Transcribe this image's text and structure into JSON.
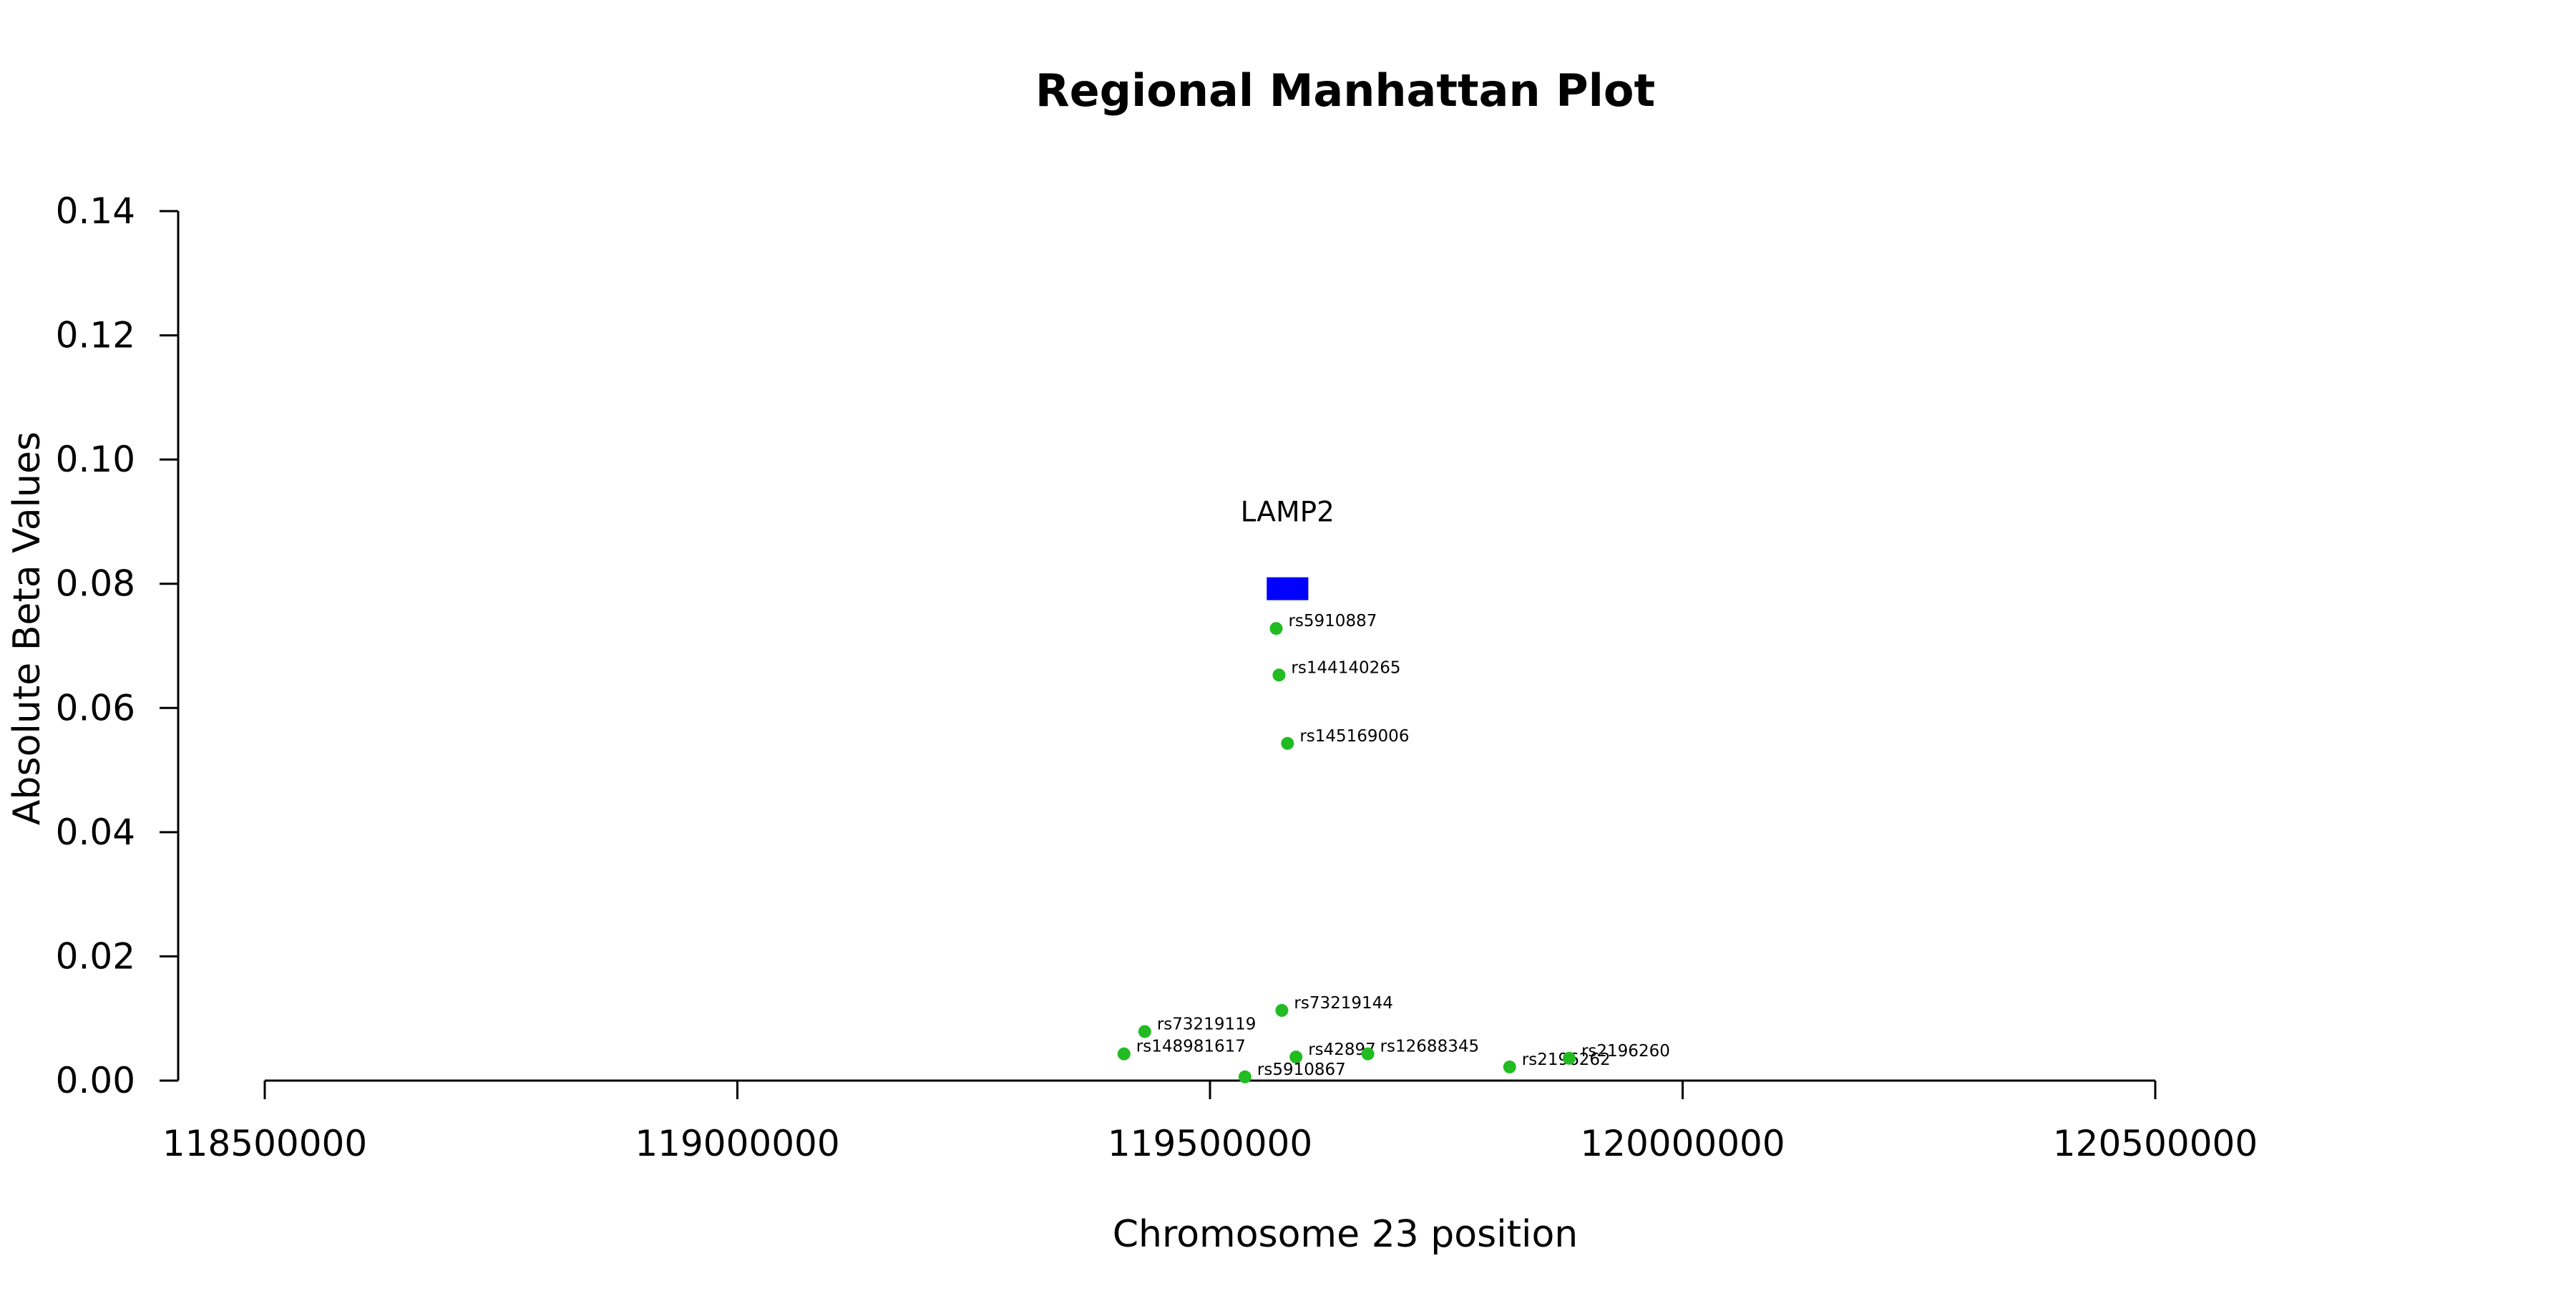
{
  "chart_data": {
    "type": "scatter",
    "title": "Regional Manhattan Plot",
    "xlabel": "Chromosome 23 position",
    "ylabel": "Absolute Beta Values",
    "xlim": [
      118500000,
      120500000
    ],
    "ylim": [
      0,
      0.14
    ],
    "xticks": [
      118500000,
      119000000,
      119500000,
      120000000,
      120500000
    ],
    "xtick_labels": [
      "118500000",
      "119000000",
      "119500000",
      "120000000",
      "120500000"
    ],
    "yticks": [
      0,
      0.02,
      0.04,
      0.06,
      0.08,
      0.1,
      0.12,
      0.14
    ],
    "ytick_labels": [
      "0.00",
      "0.02",
      "0.04",
      "0.06",
      "0.08",
      "0.10",
      "0.12",
      "0.14"
    ],
    "grid": false,
    "point_color": "#22bb22",
    "gene_color": "#0000ff",
    "points": [
      {
        "label": "rs5910887",
        "x": 119570000,
        "y": 0.0728
      },
      {
        "label": "rs144140265",
        "x": 119573000,
        "y": 0.0653
      },
      {
        "label": "rs145169006",
        "x": 119582000,
        "y": 0.0543
      },
      {
        "label": "rs73219144",
        "x": 119576000,
        "y": 0.0113
      },
      {
        "label": "rs73219119",
        "x": 119431000,
        "y": 0.0079
      },
      {
        "label": "rs148981617",
        "x": 119409000,
        "y": 0.0043
      },
      {
        "label": "rs42897",
        "x": 119591000,
        "y": 0.0038
      },
      {
        "label": "rs12688345",
        "x": 119667000,
        "y": 0.0043
      },
      {
        "label": "rs2196262",
        "x": 119817000,
        "y": 0.0022
      },
      {
        "label": "rs2196260",
        "x": 119880000,
        "y": 0.0036
      },
      {
        "label": "rs5910867",
        "x": 119537000,
        "y": 0.0006
      }
    ],
    "genes": [
      {
        "name": "LAMP2",
        "start": 119560000,
        "end": 119604000,
        "y": 0.0792
      }
    ]
  }
}
